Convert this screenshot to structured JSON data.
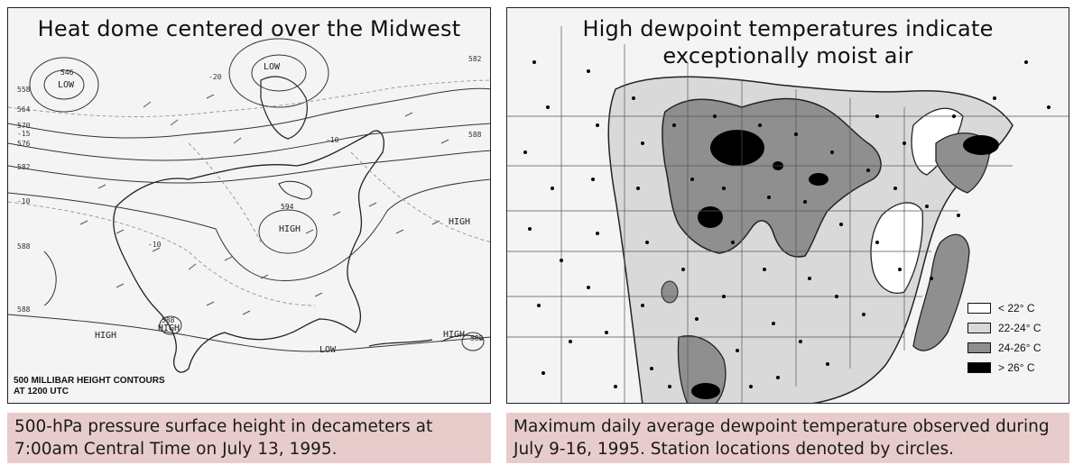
{
  "left": {
    "title": "Heat dome centered over the Midwest",
    "caption": "500-hPa pressure surface height in decameters at 7:00am Central Time on July 13, 1995.",
    "contour_note_line1": "500 MILLIBAR HEIGHT CONTOURS",
    "contour_note_line2": "AT 1200 UTC",
    "labels": {
      "low1": "LOW",
      "low1_value": "546",
      "low2": "LOW",
      "low3": "LOW",
      "high_center": "HIGH",
      "high_center_value": "594",
      "high_east": "HIGH",
      "high_southwest": "HIGH",
      "high_gulf": "HIGH",
      "high_atlantic": "HIGH",
      "v558": "558",
      "v564": "564",
      "v570": "570",
      "v15": "-15",
      "v576": "576",
      "v582": "582",
      "v10": "-10",
      "v588a": "588",
      "v588b": "588",
      "v588c": "588",
      "v582b": "582",
      "v588d": "588",
      "v20": "-20",
      "v10b": "-10",
      "v10c": "-10",
      "v588e": "588"
    }
  },
  "right": {
    "title_line1": "High dewpoint temperatures indicate",
    "title_line2": "exceptionally moist air",
    "caption": "Maximum daily average dewpoint temperature observed during July 9-16, 1995. Station locations denoted by circles.",
    "legend": [
      {
        "label": "< 22° C",
        "color": "#ffffff"
      },
      {
        "label": "22-24° C",
        "color": "#d9d9d9"
      },
      {
        "label": "24-26° C",
        "color": "#8f8f8f"
      },
      {
        "label": "> 26° C",
        "color": "#000000"
      }
    ]
  }
}
